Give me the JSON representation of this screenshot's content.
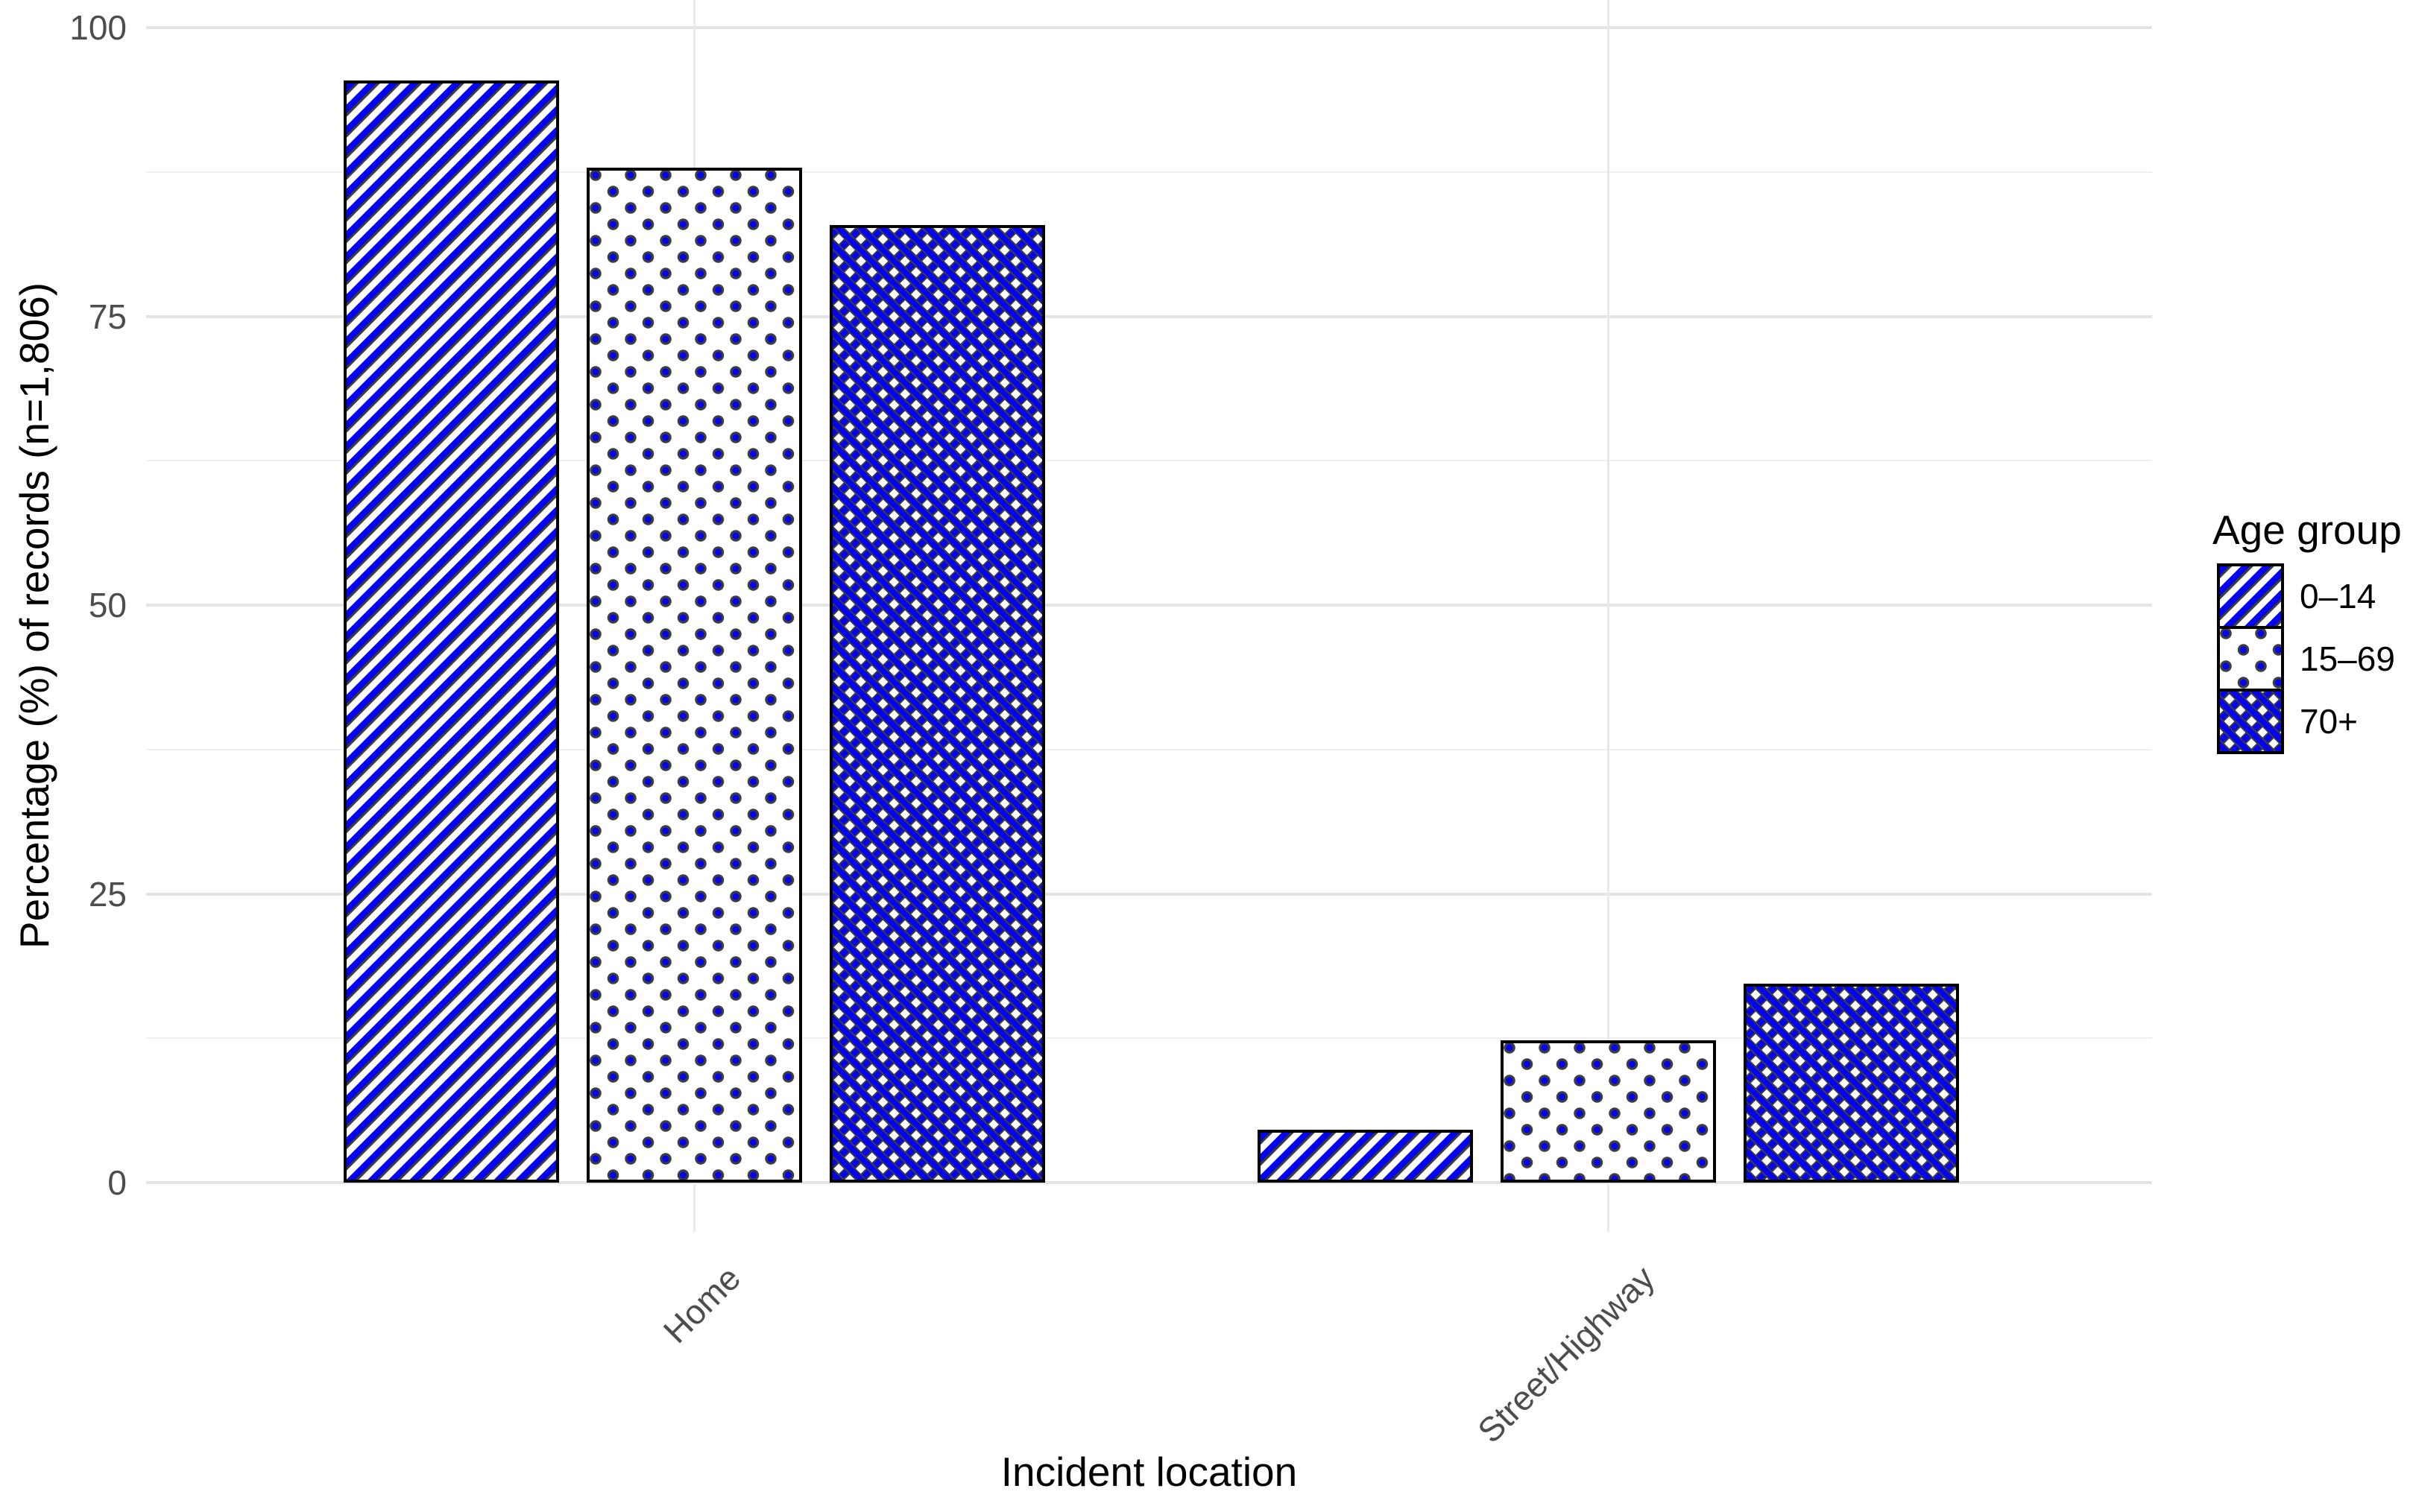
{
  "chart": {
    "y_axis": {
      "title": "Percentage (%) of records (n=1,806)",
      "ticks": [
        "0",
        "25",
        "50",
        "75",
        "100"
      ]
    },
    "x_axis": {
      "title": "Incident location",
      "categories": [
        "Home",
        "Street/Highway"
      ]
    },
    "legend": {
      "title": "Age group",
      "items": [
        {
          "label": "0–14",
          "pattern": "diagonal-stripe"
        },
        {
          "label": "15–69",
          "pattern": "dots"
        },
        {
          "label": "70+",
          "pattern": "crosshatch"
        }
      ]
    },
    "colors": {
      "pattern_blue": "#0404f0",
      "pattern_shadow": "#3d3d3d",
      "bar_border": "#000000",
      "gridline_major": "#e4e4e4",
      "gridline_minor": "#efefef",
      "tick_text": "#4d4d4d",
      "title_text": "#000000",
      "background": "#ffffff"
    }
  },
  "chart_data": {
    "type": "bar",
    "title": "",
    "xlabel": "Incident location",
    "ylabel": "Percentage (%) of records (n=1,806)",
    "categories": [
      "Home",
      "Street/Highway"
    ],
    "series": [
      {
        "name": "0–14",
        "pattern": "diagonal-stripe",
        "values": [
          95.4,
          4.6
        ]
      },
      {
        "name": "15–69",
        "pattern": "dots",
        "values": [
          87.9,
          12.3
        ]
      },
      {
        "name": "70+",
        "pattern": "crosshatch",
        "values": [
          82.9,
          17.2
        ]
      }
    ],
    "ylim": [
      0,
      100
    ],
    "y_major_ticks": [
      0,
      25,
      50,
      75,
      100
    ],
    "y_minor_ticks": [
      12.5,
      37.5,
      62.5,
      87.5
    ],
    "grid": "horizontal major+minor grey, vertical major at category centers, white background",
    "legend_position": "right",
    "legend_title": "Age group",
    "bar_style": "white bars with blue pattern fills (diagonal stripes / dots / crosshatch), black outline, dodged groups"
  }
}
